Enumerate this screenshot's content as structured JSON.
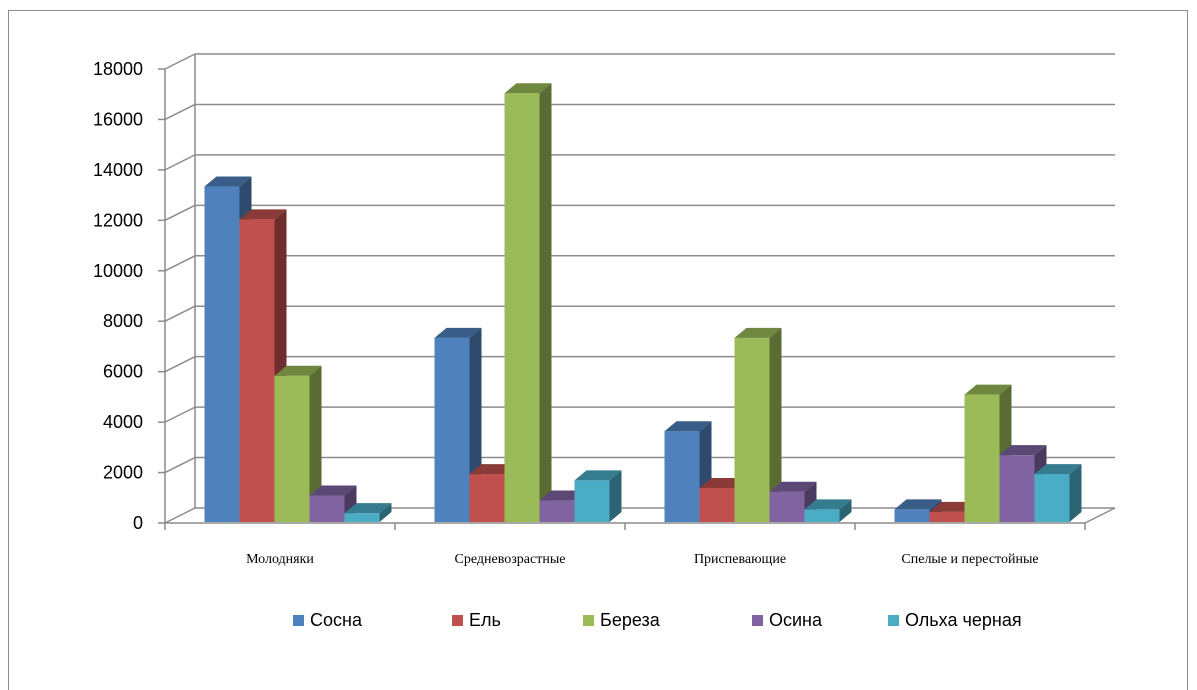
{
  "chart_data": {
    "type": "bar",
    "categories": [
      "Молодняки",
      "Средневозрастные",
      "Приспевающие",
      "Спелые и перестойные"
    ],
    "series": [
      {
        "name": "Сосна",
        "values": [
          13300,
          7300,
          3600,
          500
        ],
        "color": "#4F81BD"
      },
      {
        "name": "Ель",
        "values": [
          12000,
          1900,
          1350,
          400
        ],
        "color": "#C0504D"
      },
      {
        "name": "Береза",
        "values": [
          5800,
          17000,
          7300,
          5050
        ],
        "color": "#9BBB59"
      },
      {
        "name": "Осина",
        "values": [
          1050,
          850,
          1200,
          2650
        ],
        "color": "#8064A2"
      },
      {
        "name": "Ольха черная",
        "values": [
          350,
          1650,
          500,
          1900
        ],
        "color": "#4BACC6"
      }
    ],
    "yticks": [
      "0",
      "2000",
      "4000",
      "6000",
      "8000",
      "10000",
      "12000",
      "14000",
      "16000",
      "18000"
    ],
    "ylim": [
      0,
      18000
    ],
    "grid": true,
    "legend_position": "bottom",
    "style": "3d-clustered-column"
  }
}
